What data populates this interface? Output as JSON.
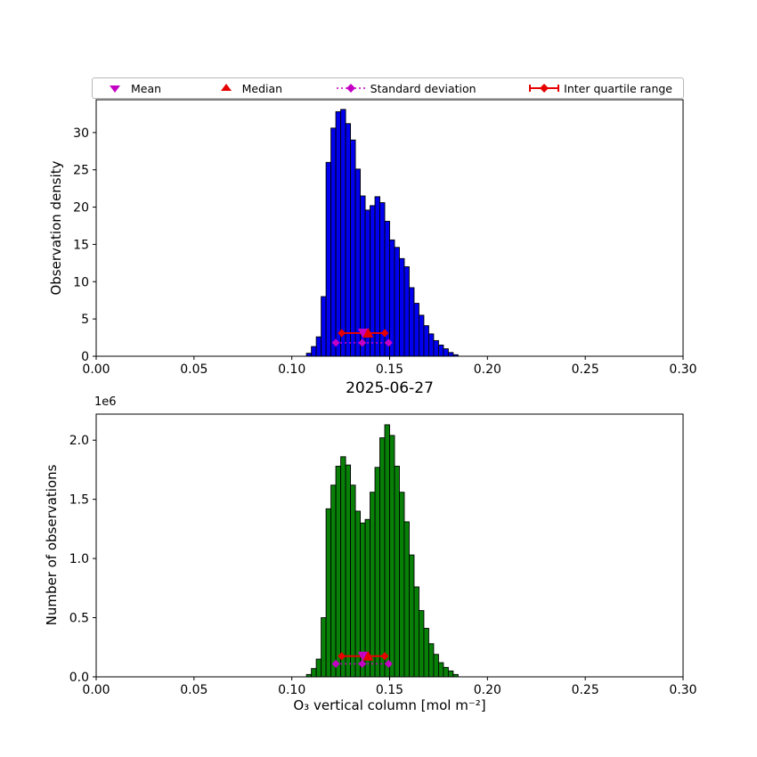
{
  "legend": {
    "items": [
      {
        "label": "Mean",
        "marker": "triangle-down",
        "color": "#c400c4"
      },
      {
        "label": "Median",
        "marker": "triangle-up",
        "color": "#e60000"
      },
      {
        "label": "Standard deviation",
        "marker": "dotted-line-diamond",
        "color": "#c400c4"
      },
      {
        "label": "Inter quartile range",
        "marker": "solid-line-diamond",
        "color": "#e60000"
      }
    ]
  },
  "chart_data": [
    {
      "type": "bar",
      "title": "",
      "ylabel": "Observation density",
      "xlabel": "",
      "bar_color": "#0000ee",
      "edge_color": "#000000",
      "xlim": [
        0.0,
        0.3
      ],
      "ylim": [
        0,
        34.4
      ],
      "bin_start": 0.1075,
      "bin_width": 0.0025,
      "values": [
        0.4,
        1.3,
        2.6,
        8.0,
        26.0,
        30.6,
        32.8,
        33.1,
        31.2,
        29.0,
        25.1,
        21.5,
        19.6,
        20.2,
        21.4,
        20.6,
        18.1,
        15.6,
        14.6,
        13.1,
        12.0,
        9.2,
        7.1,
        5.5,
        4.1,
        3.0,
        2.1,
        1.5,
        1.0,
        0.5,
        0.2
      ],
      "xticks": [
        0.0,
        0.05,
        0.1,
        0.15,
        0.2,
        0.25,
        0.3
      ],
      "xtick_labels": [
        "0.00",
        "0.05",
        "0.10",
        "0.15",
        "0.20",
        "0.25",
        "0.30"
      ],
      "yticks": [
        0,
        5,
        10,
        15,
        20,
        25,
        30
      ],
      "ytick_labels": [
        "0",
        "5",
        "10",
        "15",
        "20",
        "25",
        "30"
      ],
      "markers": {
        "mean": {
          "x": 0.1365,
          "y": 3.1
        },
        "median": {
          "x": 0.139,
          "y": 3.1
        },
        "std": {
          "x1": 0.1225,
          "x2": 0.1495,
          "center": 0.136,
          "y": 1.8
        },
        "iqr": {
          "x1": 0.1255,
          "x2": 0.1475,
          "center": 0.1365,
          "y": 3.1
        }
      }
    },
    {
      "type": "bar",
      "title": "2025-06-27",
      "ylabel": "Number of observations",
      "xlabel": "O₃ vertical column [mol m⁻²]",
      "offset_text": "1e6",
      "bar_color": "#088008",
      "edge_color": "#000000",
      "xlim": [
        0.0,
        0.3
      ],
      "ylim": [
        0,
        2.22
      ],
      "bin_start": 0.1075,
      "bin_width": 0.0025,
      "values": [
        0.02,
        0.07,
        0.15,
        0.5,
        1.42,
        1.62,
        1.78,
        1.86,
        1.79,
        1.62,
        1.4,
        1.3,
        1.33,
        1.56,
        1.77,
        2.02,
        2.13,
        2.04,
        1.78,
        1.56,
        1.31,
        1.03,
        0.76,
        0.56,
        0.41,
        0.28,
        0.19,
        0.12,
        0.08,
        0.05,
        0.02
      ],
      "xticks": [
        0.0,
        0.05,
        0.1,
        0.15,
        0.2,
        0.25,
        0.3
      ],
      "xtick_labels": [
        "0.00",
        "0.05",
        "0.10",
        "0.15",
        "0.20",
        "0.25",
        "0.30"
      ],
      "yticks": [
        0,
        0.5,
        1.0,
        1.5,
        2.0
      ],
      "ytick_labels": [
        "0.0",
        "0.5",
        "1.0",
        "1.5",
        "2.0"
      ],
      "markers": {
        "mean": {
          "x": 0.1365,
          "y": 0.175
        },
        "median": {
          "x": 0.139,
          "y": 0.175
        },
        "std": {
          "x1": 0.1225,
          "x2": 0.1495,
          "center": 0.136,
          "y": 0.11
        },
        "iqr": {
          "x1": 0.1255,
          "x2": 0.1475,
          "center": 0.1365,
          "y": 0.175
        }
      }
    }
  ]
}
